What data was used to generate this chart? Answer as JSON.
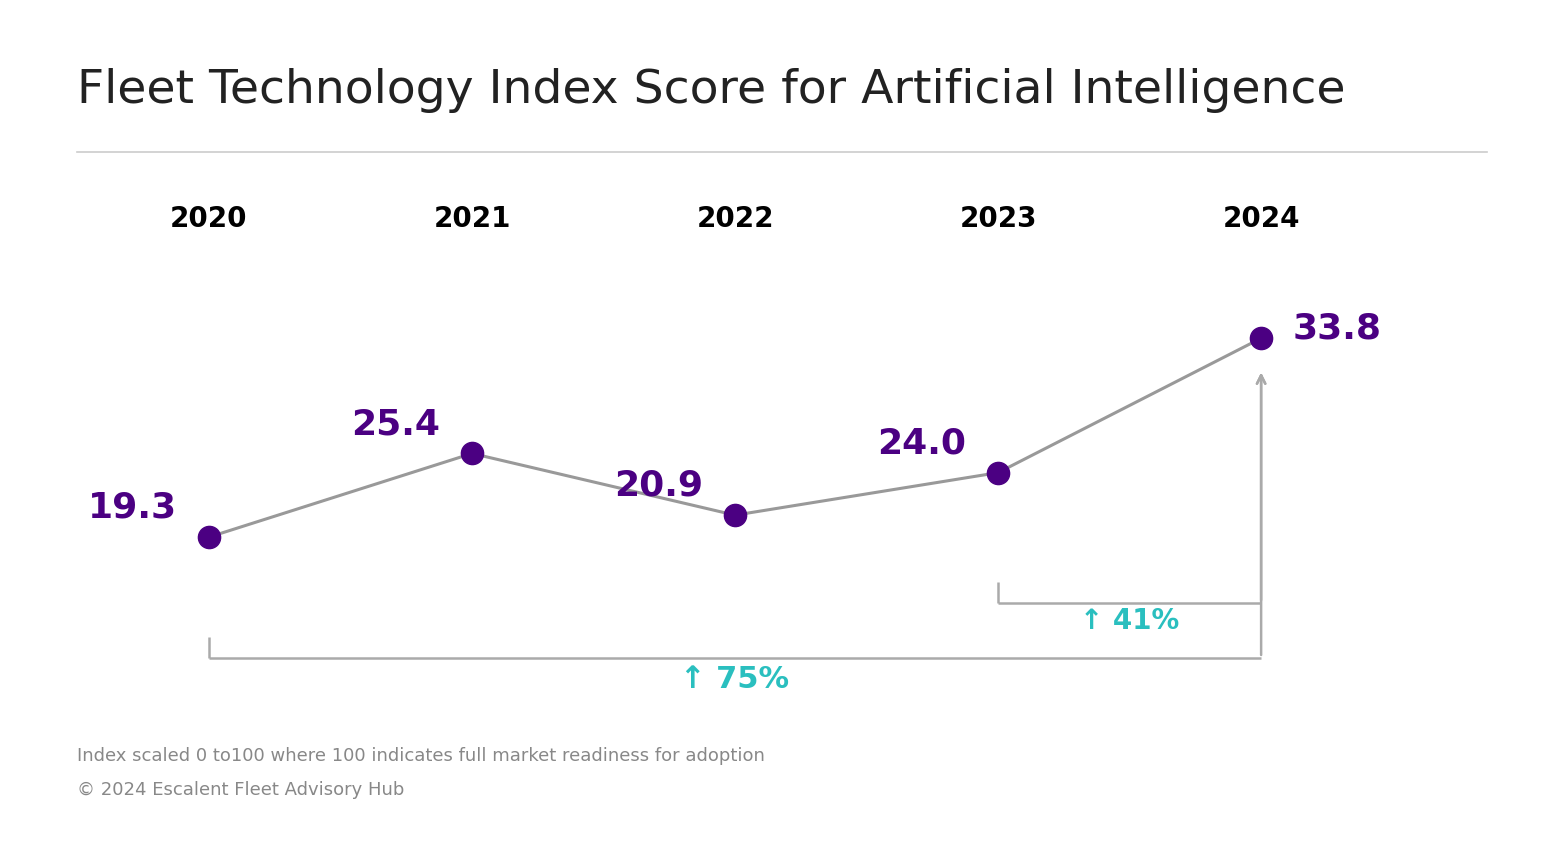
{
  "title": "Fleet Technology Index Score for Artificial Intelligence",
  "years": [
    "2020",
    "2021",
    "2022",
    "2023",
    "2024"
  ],
  "values": [
    19.3,
    25.4,
    20.9,
    24.0,
    33.8
  ],
  "line_color": "#999999",
  "dot_color": "#4B0082",
  "label_color": "#4B0082",
  "annotation_color": "#2ABFBF",
  "bracket_color": "#aaaaaa",
  "title_fontsize": 34,
  "label_fontsize": 26,
  "year_fontsize": 20,
  "footer_text_1": "Index scaled 0 to100 where 100 indicates full market readiness for adoption",
  "footer_text_2": "© 2024 Escalent Fleet Advisory Hub",
  "footer_fontsize": 13,
  "pct_75_label": "↑ 75%",
  "pct_41_label": "↑ 41%",
  "background_color": "#ffffff",
  "separator_color": "#cccccc"
}
